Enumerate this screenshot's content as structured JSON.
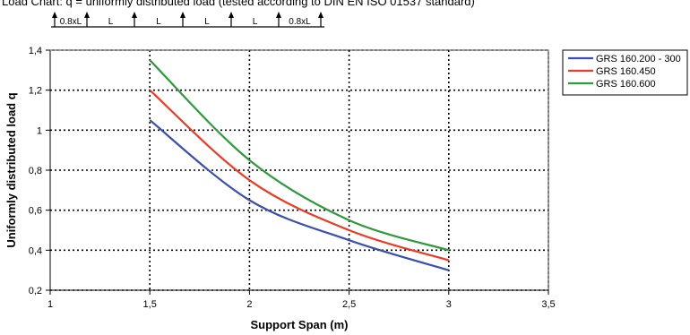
{
  "chart_data": {
    "type": "line",
    "header_title": "Load Chart: q = uniformly distributed load (tested according to DIN EN ISO 01537 standard)",
    "beam_labels": [
      "0.8xL",
      "L",
      "L",
      "L",
      "L",
      "0.8xL"
    ],
    "xlabel": "Support Span (m)",
    "ylabel": "Uniformly distributed load q",
    "xlim": [
      1,
      3.5
    ],
    "ylim": [
      0.2,
      1.4
    ],
    "x_ticks": [
      1,
      1.5,
      2,
      2.5,
      3,
      3.5
    ],
    "x_tick_labels": [
      "1",
      "1,5",
      "2",
      "2,5",
      "3",
      "3,5"
    ],
    "y_ticks": [
      0.2,
      0.4,
      0.6,
      0.8,
      1.0,
      1.2,
      1.4
    ],
    "y_tick_labels": [
      "0,2",
      "0,4",
      "0,6",
      "0,8",
      "1",
      "1,2",
      "1,4"
    ],
    "grid": true,
    "legend_position": "right",
    "series": [
      {
        "name": "GRS 160.200 - 300",
        "color": "#3a4fb0",
        "x": [
          1.5,
          2,
          2.5,
          3
        ],
        "values": [
          1.05,
          0.65,
          0.45,
          0.3
        ]
      },
      {
        "name": "GRS 160.450",
        "color": "#ee3a24",
        "x": [
          1.5,
          2,
          2.5,
          3
        ],
        "values": [
          1.2,
          0.75,
          0.5,
          0.35
        ]
      },
      {
        "name": "GRS 160.600",
        "color": "#2e9a3c",
        "x": [
          1.5,
          2,
          2.5,
          3
        ],
        "values": [
          1.35,
          0.85,
          0.55,
          0.4
        ]
      }
    ]
  }
}
